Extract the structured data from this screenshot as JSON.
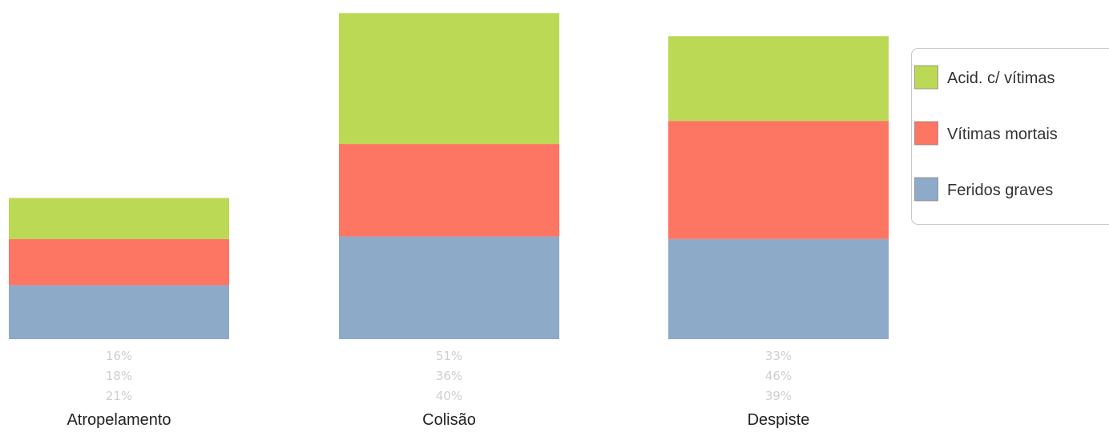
{
  "chart_data": {
    "type": "bar",
    "stacked": true,
    "categories": [
      "Atropelamento",
      "Colisão",
      "Despiste"
    ],
    "series": [
      {
        "name": "Feridos graves",
        "color": "#8eaac9",
        "values": [
          21,
          40,
          39
        ],
        "labels": [
          "21%",
          "40%",
          "39%"
        ]
      },
      {
        "name": "Vítimas mortais",
        "color": "#fd7563",
        "values": [
          18,
          36,
          46
        ],
        "labels": [
          "18%",
          "36%",
          "46%"
        ]
      },
      {
        "name": "Acid. c/ vítimas",
        "color": "#bcd956",
        "values": [
          16,
          51,
          33
        ],
        "labels": [
          "16%",
          "51%",
          "33%"
        ]
      }
    ],
    "ylim": [
      0,
      127
    ],
    "grid": false,
    "legend_position": "right",
    "legend_order": [
      "Acid. c/ vítimas",
      "Vítimas mortais",
      "Feridos graves"
    ],
    "title": "",
    "xlabel": "",
    "ylabel": ""
  }
}
